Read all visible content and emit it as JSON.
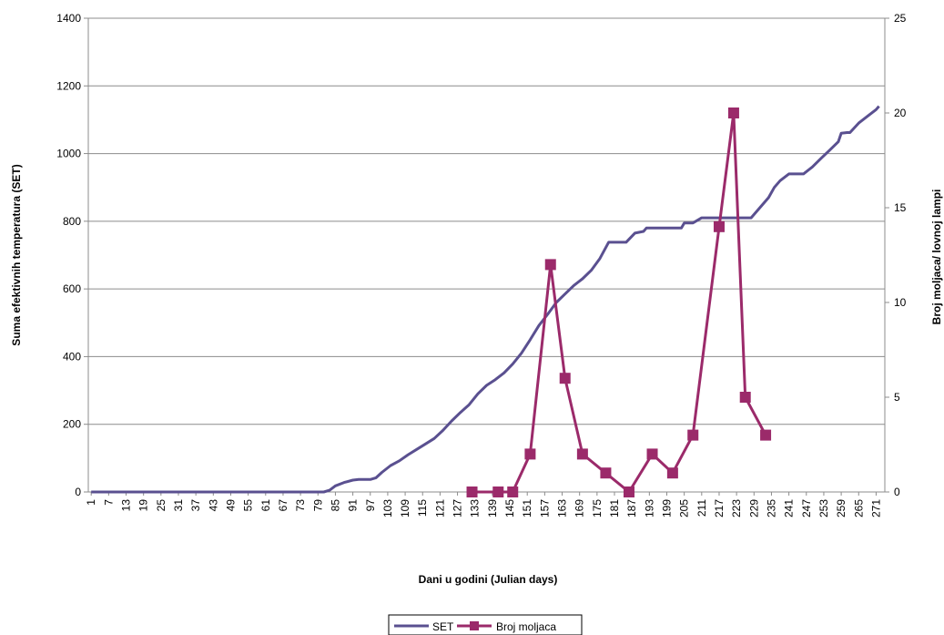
{
  "chart_data": {
    "type": "line",
    "title": "",
    "xlabel": "Dani u godini (Julian days)",
    "ylabel": "Suma efektivnih temperatura (SET)",
    "y2label": "Broj moljaca/ lovnoj lampi",
    "xlim": [
      1,
      272
    ],
    "ylim": [
      0,
      1400
    ],
    "y2lim": [
      0,
      25
    ],
    "x_ticks": [
      "1",
      "7",
      "13",
      "19",
      "25",
      "31",
      "37",
      "43",
      "49",
      "55",
      "61",
      "67",
      "73",
      "79",
      "85",
      "91",
      "97",
      "103",
      "109",
      "115",
      "121",
      "127",
      "133",
      "139",
      "145",
      "151",
      "157",
      "163",
      "169",
      "175",
      "181",
      "187",
      "193",
      "199",
      "205",
      "211",
      "217",
      "223",
      "229",
      "235",
      "241",
      "247",
      "253",
      "259",
      "265",
      "271"
    ],
    "y_ticks": [
      "0",
      "200",
      "400",
      "600",
      "800",
      "1000",
      "1200",
      "1400"
    ],
    "y2_ticks": [
      "0",
      "5",
      "10",
      "15",
      "20",
      "25"
    ],
    "grid": true,
    "legend_position": "bottom",
    "series": [
      {
        "name": "SET",
        "axis": "left",
        "color": "#5a5090",
        "x": [
          1,
          81,
          83,
          85,
          88,
          91,
          93,
          97,
          99,
          101,
          104,
          107,
          110,
          113,
          116,
          119,
          122,
          125,
          128,
          131,
          134,
          137,
          140,
          143,
          146,
          149,
          152,
          155,
          158,
          161,
          164,
          167,
          170,
          173,
          176,
          179,
          182,
          185,
          188,
          191,
          192,
          194,
          196,
          200,
          204,
          205,
          208,
          211,
          212,
          220,
          222,
          225,
          228,
          231,
          234,
          236,
          238,
          241,
          244,
          245,
          246,
          249,
          252,
          255,
          258,
          259,
          261,
          262,
          265,
          268,
          271,
          272
        ],
        "y": [
          0,
          0,
          5,
          18,
          28,
          35,
          37,
          37,
          42,
          58,
          78,
          92,
          110,
          126,
          142,
          158,
          182,
          210,
          235,
          258,
          290,
          315,
          332,
          352,
          378,
          410,
          450,
          492,
          525,
          560,
          585,
          610,
          630,
          655,
          690,
          738,
          738,
          738,
          765,
          770,
          780,
          780,
          780,
          780,
          780,
          795,
          795,
          810,
          810,
          810,
          810,
          810,
          810,
          840,
          870,
          900,
          920,
          940,
          940,
          940,
          940,
          960,
          985,
          1010,
          1035,
          1060,
          1062,
          1062,
          1090,
          1110,
          1130,
          1140
        ]
      },
      {
        "name": "Broj moljaca",
        "axis": "right",
        "color": "#9b2a6a",
        "x": [
          132,
          141,
          146,
          152,
          159,
          164,
          170,
          178,
          186,
          194,
          201,
          208,
          217,
          222,
          226,
          233
        ],
        "y": [
          0,
          0,
          0,
          2,
          12,
          6,
          2,
          1,
          0,
          2,
          1,
          3,
          14,
          20,
          5,
          3
        ]
      }
    ]
  }
}
